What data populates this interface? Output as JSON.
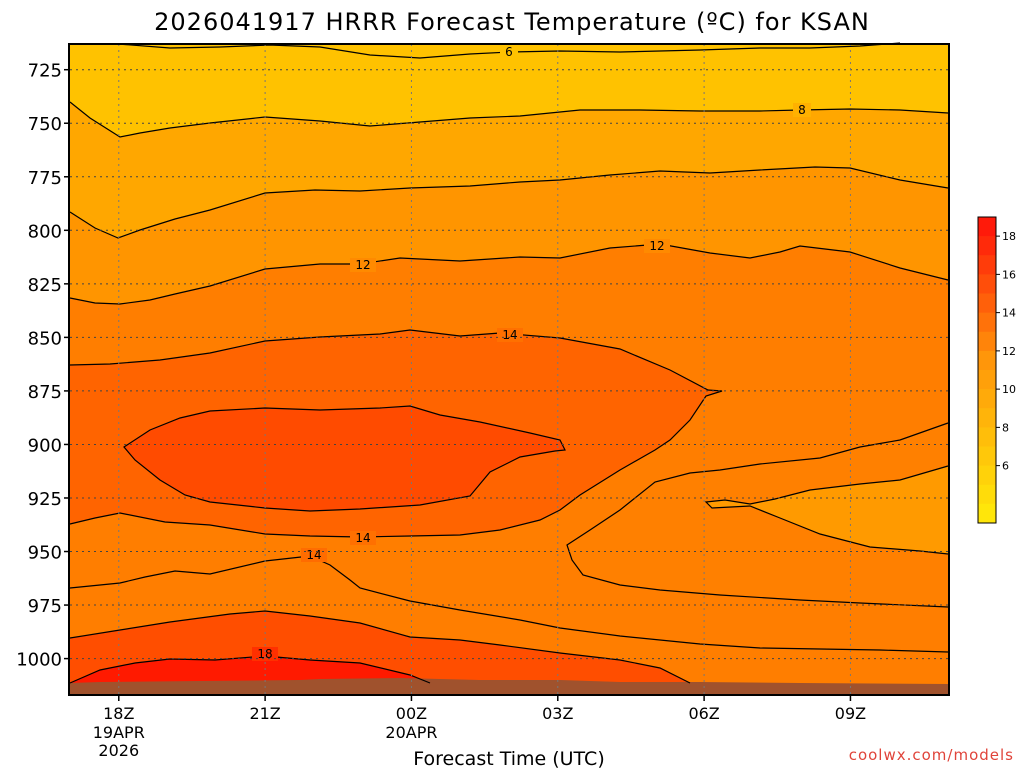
{
  "chart_data": {
    "type": "contour",
    "title": "2026041917 HRRR Forecast Temperature (ºC) for KSAN",
    "xlabel": "Forecast Time (UTC)",
    "credit": "coolwx.com/models",
    "x_ticks": [
      {
        "label": "18Z",
        "sub": [
          "19APR",
          "2026"
        ]
      },
      {
        "label": "21Z",
        "sub": []
      },
      {
        "label": "00Z",
        "sub": [
          "20APR"
        ]
      },
      {
        "label": "03Z",
        "sub": []
      },
      {
        "label": "06Z",
        "sub": []
      },
      {
        "label": "09Z",
        "sub": []
      }
    ],
    "x_hours": [
      0,
      3,
      6,
      9,
      12,
      15
    ],
    "x_range": [
      -1,
      17
    ],
    "y_ticks": [
      "725",
      "750",
      "775",
      "800",
      "825",
      "850",
      "875",
      "900",
      "925",
      "950",
      "975",
      "1000"
    ],
    "y_values": [
      725,
      750,
      775,
      800,
      825,
      850,
      875,
      900,
      925,
      950,
      975,
      1000
    ],
    "y_range": [
      713,
      1017
    ],
    "contour_levels": [
      "6",
      "8",
      "12",
      "14",
      "14",
      "14",
      "18"
    ],
    "colorbar": {
      "labels": [
        "18",
        "16",
        "14",
        "12",
        "10",
        "8",
        "6"
      ],
      "bins": [
        19,
        18,
        17,
        16,
        15,
        14,
        13,
        12,
        11,
        10,
        9,
        8,
        7,
        6,
        5,
        4
      ],
      "colors": [
        "#ff1a0a",
        "#ff2a0a",
        "#ff3c0a",
        "#ff4e0a",
        "#ff600a",
        "#ff720a",
        "#ff840a",
        "#ff960a",
        "#ffa00a",
        "#ffaa0a",
        "#ffb40a",
        "#ffbe0a",
        "#ffc80a",
        "#ffd20a",
        "#ffdc0a",
        "#ffe60a"
      ]
    },
    "grid": true
  }
}
